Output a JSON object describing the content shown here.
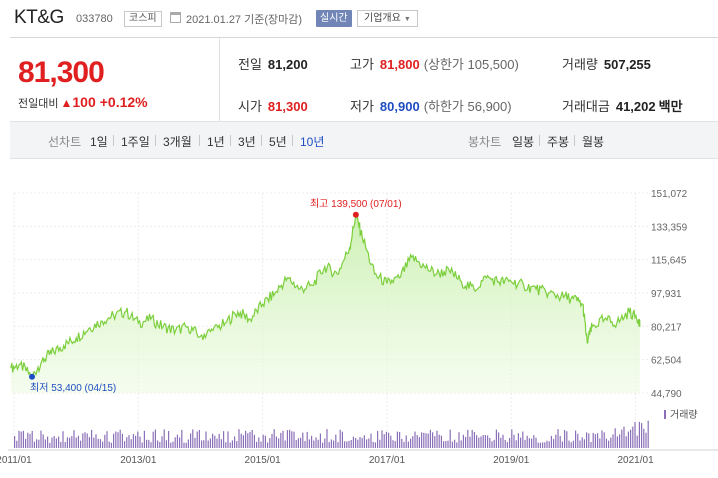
{
  "header": {
    "name": "KT&G",
    "code": "033780",
    "market": "코스피",
    "date": "2021.01.27 기준(장마감)",
    "realtime": "실시간",
    "corp_info": "기업개요"
  },
  "quote": {
    "price": "81,300",
    "change_label": "전일대비",
    "change_value": "100",
    "change_rate": "+0.12%",
    "prev_close_label": "전일",
    "prev_close": "81,200",
    "high_label": "고가",
    "high": "81,800",
    "upper_limit": "(상한가 105,500)",
    "volume_label": "거래량",
    "volume": "507,255",
    "open_label": "시가",
    "open": "81,300",
    "low_label": "저가",
    "low": "80,900",
    "lower_limit": "(하한가 56,900)",
    "amount_label": "거래대금",
    "amount": "41,202",
    "amount_unit": "백만"
  },
  "period": {
    "line_label": "선차트",
    "line_items": [
      "1일",
      "1주일",
      "3개월",
      "1년",
      "3년",
      "5년",
      "10년"
    ],
    "active": "10년",
    "candle_label": "봉차트",
    "candle_items": [
      "일봉",
      "주봉",
      "월봉"
    ]
  },
  "colors": {
    "up": "#e02020",
    "down": "#1f4ec2",
    "line": "#7ccf3c",
    "volume": "#8a70b8"
  },
  "chart_data": {
    "type": "area",
    "ylim": [
      44790,
      151072
    ],
    "yticks": [
      "151,072",
      "133,359",
      "115,645",
      "97,931",
      "80,217",
      "62,504",
      "44,790"
    ],
    "xticks": [
      {
        "label": "2011/01",
        "x": 2011.0
      },
      {
        "label": "2013/01",
        "x": 2013.0
      },
      {
        "label": "2015/01",
        "x": 2015.0
      },
      {
        "label": "2017/01",
        "x": 2017.0
      },
      {
        "label": "2019/01",
        "x": 2019.0
      },
      {
        "label": "2021/01",
        "x": 2021.0
      }
    ],
    "xlim": [
      2011.0,
      2021.2
    ],
    "max_label": "최고 139,500 (07/01)",
    "max_point": {
      "x": 2016.5,
      "y": 139500
    },
    "min_label": "최저 53,400 (04/15)",
    "min_point": {
      "x": 2011.29,
      "y": 53400
    },
    "volume_label": "거래량",
    "series": [
      {
        "values": [
          [
            2010.95,
            58000
          ],
          [
            2011.1,
            60000
          ],
          [
            2011.29,
            53400
          ],
          [
            2011.45,
            62000
          ],
          [
            2011.6,
            66000
          ],
          [
            2011.8,
            70000
          ],
          [
            2012.0,
            74000
          ],
          [
            2012.2,
            79000
          ],
          [
            2012.4,
            83000
          ],
          [
            2012.6,
            86000
          ],
          [
            2012.8,
            88000
          ],
          [
            2013.0,
            82000
          ],
          [
            2013.2,
            84000
          ],
          [
            2013.4,
            80000
          ],
          [
            2013.6,
            78000
          ],
          [
            2013.8,
            80000
          ],
          [
            2014.0,
            75000
          ],
          [
            2014.2,
            78000
          ],
          [
            2014.4,
            82000
          ],
          [
            2014.6,
            88000
          ],
          [
            2014.8,
            84000
          ],
          [
            2015.0,
            92000
          ],
          [
            2015.2,
            98000
          ],
          [
            2015.4,
            106000
          ],
          [
            2015.6,
            100000
          ],
          [
            2015.8,
            102000
          ],
          [
            2016.0,
            112000
          ],
          [
            2016.2,
            108000
          ],
          [
            2016.4,
            122000
          ],
          [
            2016.5,
            139500
          ],
          [
            2016.6,
            128000
          ],
          [
            2016.8,
            108000
          ],
          [
            2017.0,
            103000
          ],
          [
            2017.2,
            106000
          ],
          [
            2017.4,
            117000
          ],
          [
            2017.6,
            112000
          ],
          [
            2017.8,
            108000
          ],
          [
            2018.0,
            110000
          ],
          [
            2018.2,
            104000
          ],
          [
            2018.4,
            100000
          ],
          [
            2018.6,
            106000
          ],
          [
            2018.8,
            104000
          ],
          [
            2019.0,
            104000
          ],
          [
            2019.2,
            102000
          ],
          [
            2019.4,
            100000
          ],
          [
            2019.6,
            98000
          ],
          [
            2019.8,
            96000
          ],
          [
            2020.0,
            95000
          ],
          [
            2020.15,
            92000
          ],
          [
            2020.22,
            72000
          ],
          [
            2020.3,
            80000
          ],
          [
            2020.5,
            84000
          ],
          [
            2020.7,
            82000
          ],
          [
            2020.9,
            88000
          ],
          [
            2021.05,
            84000
          ],
          [
            2021.07,
            81300
          ]
        ]
      }
    ]
  }
}
